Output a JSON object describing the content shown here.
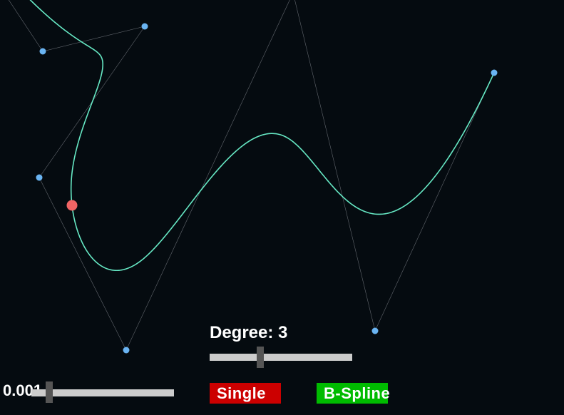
{
  "colors": {
    "background": "#050b10",
    "curve": "#66e8c4",
    "control_polygon": "#8a8f95",
    "control_point": "#6ab4f2",
    "active_point": "#f06464",
    "single_button": "#cc0000",
    "bspline_button": "#00bb00",
    "slider_track": "#cccccc",
    "slider_thumb": "#555555"
  },
  "curve": {
    "degree": 3,
    "control_points": [
      [
        -160,
        -260
      ],
      [
        60,
        72
      ],
      [
        203,
        37
      ],
      [
        55,
        249
      ],
      [
        177,
        491
      ],
      [
        411,
        -10
      ],
      [
        526,
        464
      ],
      [
        693,
        102
      ]
    ],
    "active_t": 0.43
  },
  "controls": {
    "degree_label": "Degree: 3",
    "degree_value": 3,
    "degree_min": 1,
    "degree_max": 7,
    "step_label": "0.001",
    "step_level": 0.12,
    "single_label": "Single",
    "bspline_label": "B-Spline"
  }
}
